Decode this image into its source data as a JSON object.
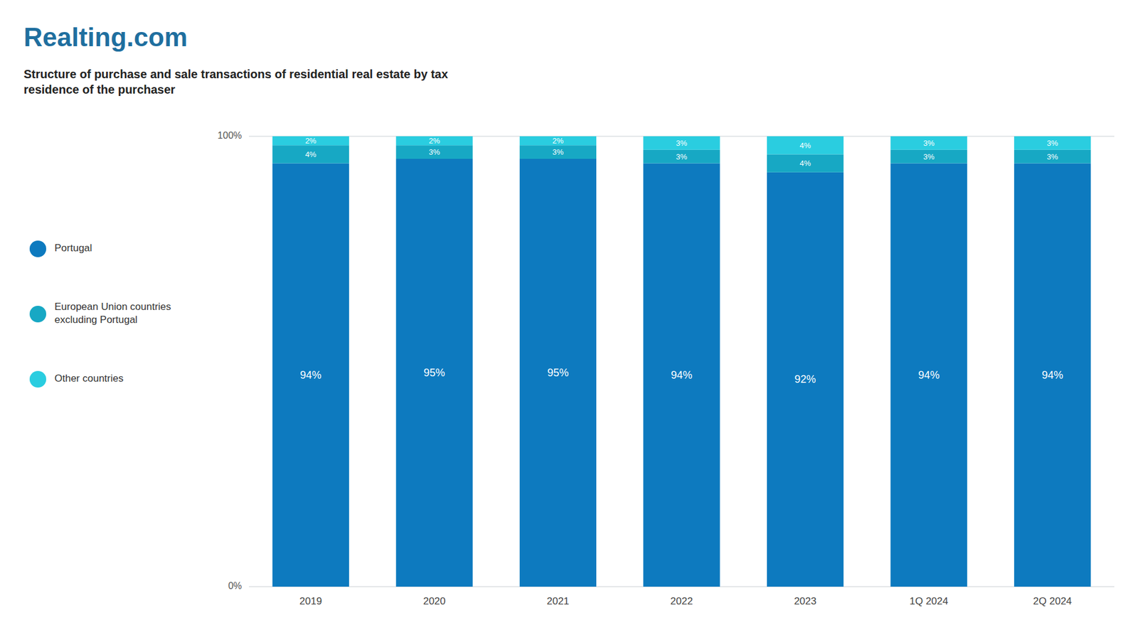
{
  "chart_data": {
    "type": "bar",
    "stacked": true,
    "title": "Realting.com",
    "subtitle": "Structure of purchase and sale transactions of residential real estate by tax\nresidence of the purchaser",
    "categories": [
      "2019",
      "2020",
      "2021",
      "2022",
      "2023",
      "1Q 2024",
      "2Q 2024"
    ],
    "series": [
      {
        "name": "Portugal",
        "color": "#0d7abf",
        "values": [
          94,
          95,
          95,
          94,
          92,
          94,
          94
        ],
        "value_labels": [
          "94%",
          "95%",
          "95%",
          "94%",
          "92%",
          "94%",
          "94%"
        ]
      },
      {
        "name": "European Union countries\nexcluding Portugal",
        "color": "#17a8c4",
        "values": [
          4,
          3,
          3,
          3,
          4,
          3,
          3
        ],
        "value_labels": [
          "4%",
          "3%",
          "3%",
          "3%",
          "4%",
          "3%",
          "3%"
        ]
      },
      {
        "name": "Other countries",
        "color": "#2acde0",
        "values": [
          2,
          2,
          2,
          3,
          4,
          3,
          3
        ],
        "value_labels": [
          "2%",
          "2%",
          "2%",
          "3%",
          "4%",
          "3%",
          "3%"
        ]
      }
    ],
    "ylim": [
      0,
      100
    ],
    "yticks": [
      {
        "value": 0,
        "label": "0%"
      },
      {
        "value": 100,
        "label": "100%"
      }
    ],
    "grid": true,
    "legend": "left",
    "data_labels": true
  }
}
